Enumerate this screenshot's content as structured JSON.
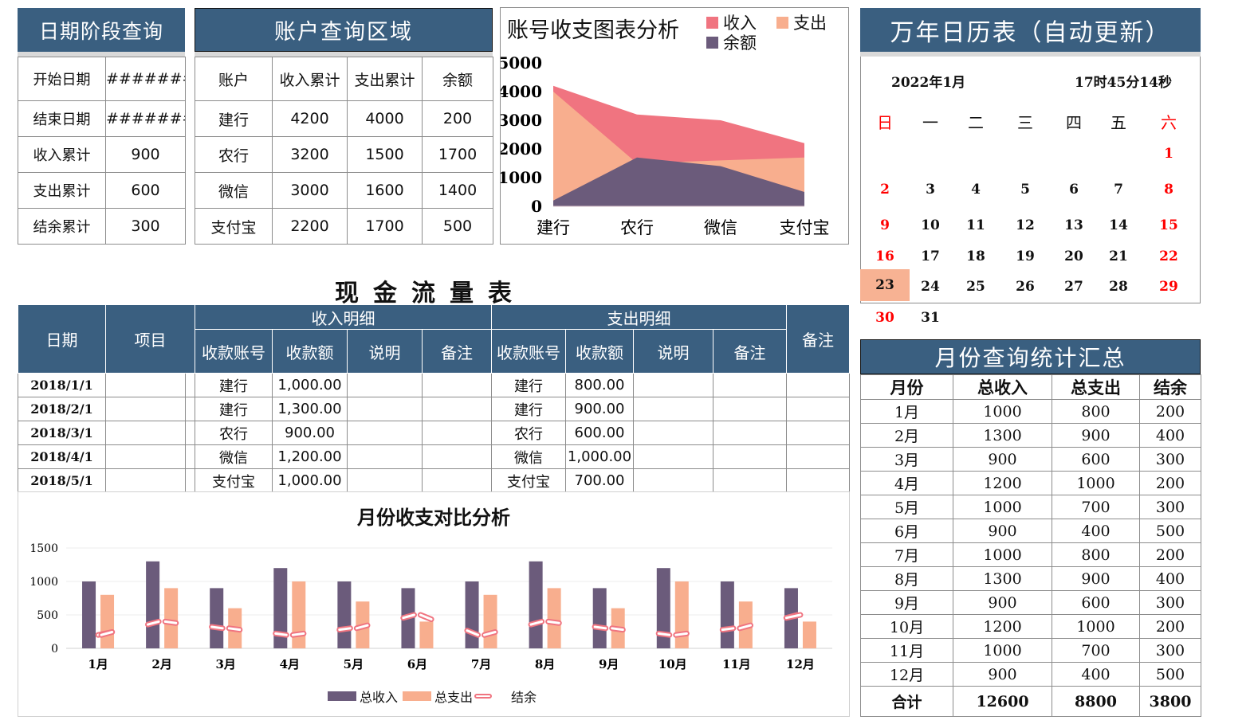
{
  "date_query": {
    "title": "日期阶段查询",
    "rows": [
      {
        "label": "开始日期",
        "value": "#######"
      },
      {
        "label": "结束日期",
        "value": "#######"
      },
      {
        "label": "收入累计",
        "value": "900"
      },
      {
        "label": "支出累计",
        "value": "600"
      },
      {
        "label": "结余累计",
        "value": "300"
      }
    ]
  },
  "account_query": {
    "title": "账户查询区域",
    "headers": [
      "账户",
      "收入累计",
      "支出累计",
      "余额"
    ],
    "rows": [
      [
        "建行",
        "4200",
        "4000",
        "200"
      ],
      [
        "农行",
        "3200",
        "1500",
        "1700"
      ],
      [
        "微信",
        "3000",
        "1600",
        "1400"
      ],
      [
        "支付宝",
        "2200",
        "1700",
        "500"
      ]
    ]
  },
  "account_chart": {
    "title": "账号收支图表分析",
    "legend": [
      "收入",
      "支出",
      "余额"
    ]
  },
  "calendar": {
    "title": "万年日历表（自动更新）",
    "month_label": "2022年1月",
    "time_label": "17时45分14秒",
    "weekdays": [
      "日",
      "一",
      "二",
      "三",
      "四",
      "五",
      "六"
    ],
    "weeks": [
      [
        "",
        "",
        "",
        "",
        "",
        "",
        "1"
      ],
      [
        "2",
        "3",
        "4",
        "5",
        "6",
        "7",
        "8"
      ],
      [
        "9",
        "10",
        "11",
        "12",
        "13",
        "14",
        "15"
      ],
      [
        "16",
        "17",
        "18",
        "19",
        "20",
        "21",
        "22"
      ],
      [
        "23",
        "24",
        "25",
        "26",
        "27",
        "28",
        "29"
      ],
      [
        "30",
        "31",
        "",
        "",
        "",
        "",
        ""
      ]
    ],
    "today": "23",
    "weekend_color": "#ff0000",
    "today_color": "#f7b293"
  },
  "cash_flow": {
    "title": "现金流量表",
    "headers": {
      "date": "日期",
      "item": "项目",
      "income_group": "收入明细",
      "expense_group": "支出明细",
      "remark": "备注",
      "income_cols": [
        "收款账号",
        "收款额",
        "说明",
        "备注"
      ],
      "expense_cols": [
        "收款账号",
        "收款额",
        "说明",
        "备注"
      ]
    },
    "rows": [
      {
        "date": "2018/1/1",
        "item": "",
        "in_acct": "建行",
        "in_amt": "1,000.00",
        "in_desc": "",
        "in_note": "",
        "out_acct": "建行",
        "out_amt": "800.00",
        "out_desc": "",
        "out_note": "",
        "note": ""
      },
      {
        "date": "2018/2/1",
        "item": "",
        "in_acct": "建行",
        "in_amt": "1,300.00",
        "in_desc": "",
        "in_note": "",
        "out_acct": "建行",
        "out_amt": "900.00",
        "out_desc": "",
        "out_note": "",
        "note": ""
      },
      {
        "date": "2018/3/1",
        "item": "",
        "in_acct": "农行",
        "in_amt": "900.00",
        "in_desc": "",
        "in_note": "",
        "out_acct": "农行",
        "out_amt": "600.00",
        "out_desc": "",
        "out_note": "",
        "note": ""
      },
      {
        "date": "2018/4/1",
        "item": "",
        "in_acct": "微信",
        "in_amt": "1,200.00",
        "in_desc": "",
        "in_note": "",
        "out_acct": "微信",
        "out_amt": "1,000.00",
        "out_desc": "",
        "out_note": "",
        "note": ""
      },
      {
        "date": "2018/5/1",
        "item": "",
        "in_acct": "支付宝",
        "in_amt": "1,000.00",
        "in_desc": "",
        "in_note": "",
        "out_acct": "支付宝",
        "out_amt": "700.00",
        "out_desc": "",
        "out_note": "",
        "note": ""
      }
    ]
  },
  "monthly_chart": {
    "title": "月份收支对比分析",
    "legend": [
      "总收入",
      "总支出",
      "结余"
    ]
  },
  "summary": {
    "title": "月份查询统计汇总",
    "headers": [
      "月份",
      "总收入",
      "总支出",
      "结余"
    ],
    "rows": [
      [
        "1月",
        "1000",
        "800",
        "200"
      ],
      [
        "2月",
        "1300",
        "900",
        "400"
      ],
      [
        "3月",
        "900",
        "600",
        "300"
      ],
      [
        "4月",
        "1200",
        "1000",
        "200"
      ],
      [
        "5月",
        "1000",
        "700",
        "300"
      ],
      [
        "6月",
        "900",
        "400",
        "500"
      ],
      [
        "7月",
        "1000",
        "800",
        "200"
      ],
      [
        "8月",
        "1300",
        "900",
        "400"
      ],
      [
        "9月",
        "900",
        "600",
        "300"
      ],
      [
        "10月",
        "1200",
        "1000",
        "200"
      ],
      [
        "11月",
        "1000",
        "700",
        "300"
      ],
      [
        "12月",
        "900",
        "400",
        "500"
      ]
    ],
    "total": [
      "合计",
      "12600",
      "8800",
      "3800"
    ]
  },
  "colors": {
    "header_blue": "#3a5f80",
    "income": "#f07480",
    "expense": "#f8ae8e",
    "balance": "#6b5b7b"
  },
  "chart_data": [
    {
      "type": "area",
      "title": "账号收支图表分析",
      "categories": [
        "建行",
        "农行",
        "微信",
        "支付宝"
      ],
      "series": [
        {
          "name": "收入",
          "values": [
            4200,
            3200,
            3000,
            2200
          ]
        },
        {
          "name": "支出",
          "values": [
            4000,
            1500,
            1600,
            1700
          ]
        },
        {
          "name": "余额",
          "values": [
            200,
            1700,
            1400,
            500
          ]
        }
      ],
      "ylim": [
        0,
        5000
      ],
      "yticks": [
        0,
        1000,
        2000,
        3000,
        4000,
        5000
      ],
      "legend_position": "top-right",
      "grid": false
    },
    {
      "type": "bar",
      "title": "月份收支对比分析",
      "categories": [
        "1月",
        "2月",
        "3月",
        "4月",
        "5月",
        "6月",
        "7月",
        "8月",
        "9月",
        "10月",
        "11月",
        "12月"
      ],
      "series": [
        {
          "name": "总收入",
          "type": "bar",
          "values": [
            1000,
            1300,
            900,
            1200,
            1000,
            900,
            1000,
            1300,
            900,
            1200,
            1000,
            900
          ]
        },
        {
          "name": "总支出",
          "type": "bar",
          "values": [
            800,
            900,
            600,
            1000,
            700,
            400,
            800,
            900,
            600,
            1000,
            700,
            400
          ]
        },
        {
          "name": "结余",
          "type": "line",
          "values": [
            200,
            400,
            300,
            200,
            300,
            500,
            200,
            400,
            300,
            200,
            300,
            500
          ]
        }
      ],
      "ylim": [
        0,
        1500
      ],
      "yticks": [
        0,
        500,
        1000,
        1500
      ],
      "legend_position": "bottom",
      "grid": true
    }
  ]
}
